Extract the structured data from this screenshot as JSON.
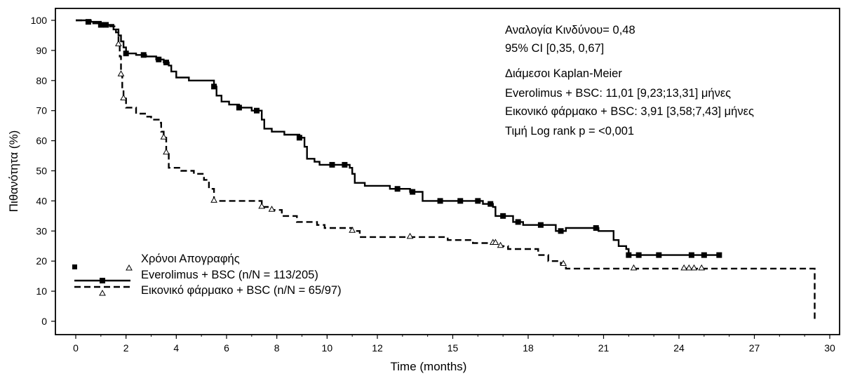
{
  "chart_data": {
    "type": "line",
    "subtype": "kaplan-meier",
    "title": "",
    "xlabel": "Time (months)",
    "ylabel": "Πιθανότητα (%)",
    "xlim": [
      0,
      30
    ],
    "ylim": [
      0,
      100
    ],
    "x_ticks": [
      "0",
      "2",
      "4",
      "6",
      "8",
      "10",
      "12",
      "15",
      "18",
      "21",
      "24",
      "27",
      "30"
    ],
    "y_ticks": [
      "0",
      "10",
      "20",
      "30",
      "40",
      "50",
      "60",
      "70",
      "80",
      "90",
      "100"
    ],
    "grid": false,
    "annotations": [
      "Αναλογία Κινδύνου= 0,48",
      "95% CI [0,35, 0,67]",
      "Διάμεσοι Kaplan-Meier",
      "Everolimus + BSC: 11,01 [9,23;13,31] μήνες",
      "Εικονικό φάρμακο + BSC: 3,91 [3,58;7,43] μήνες",
      "Τιμή Log rank p = <0,001"
    ],
    "legend": {
      "placement": "bottom-left",
      "title": "Χρόνοι Απογραφής",
      "entries": [
        "Everolimus + BSC (n/N = 113/205)",
        "Εικονικό φάρμακο + BSC (n/N = 65/97)"
      ]
    },
    "series": [
      {
        "name": "Everolimus + BSC (n/N = 113/205)",
        "style": "solid",
        "censor_marker": "filled-square",
        "steps": [
          [
            0,
            100
          ],
          [
            0.5,
            99.5
          ],
          [
            1.0,
            98.5
          ],
          [
            1.5,
            97
          ],
          [
            1.7,
            95
          ],
          [
            1.8,
            93
          ],
          [
            1.9,
            91
          ],
          [
            2.0,
            89
          ],
          [
            2.4,
            88.5
          ],
          [
            2.8,
            88
          ],
          [
            3.2,
            87
          ],
          [
            3.5,
            86
          ],
          [
            3.7,
            85
          ],
          [
            3.8,
            83
          ],
          [
            4.0,
            81
          ],
          [
            4.5,
            80
          ],
          [
            5.5,
            78
          ],
          [
            5.6,
            75
          ],
          [
            5.8,
            73
          ],
          [
            6.1,
            72
          ],
          [
            6.5,
            71
          ],
          [
            7.0,
            70
          ],
          [
            7.4,
            67
          ],
          [
            7.5,
            64
          ],
          [
            7.8,
            63
          ],
          [
            8.3,
            62
          ],
          [
            8.9,
            61
          ],
          [
            9.1,
            58
          ],
          [
            9.2,
            54
          ],
          [
            9.5,
            53
          ],
          [
            9.7,
            52
          ],
          [
            10.5,
            52
          ],
          [
            10.9,
            51
          ],
          [
            11.0,
            49
          ],
          [
            11.1,
            46
          ],
          [
            11.5,
            45
          ],
          [
            12.5,
            44
          ],
          [
            13.3,
            43
          ],
          [
            13.8,
            40
          ],
          [
            15.0,
            40
          ],
          [
            16.2,
            39
          ],
          [
            16.6,
            38
          ],
          [
            16.7,
            35
          ],
          [
            17.3,
            35
          ],
          [
            17.4,
            33
          ],
          [
            17.8,
            32
          ],
          [
            18.7,
            32
          ],
          [
            19.1,
            30
          ],
          [
            19.5,
            31
          ],
          [
            20.5,
            31
          ],
          [
            20.8,
            30
          ],
          [
            21.4,
            27
          ],
          [
            21.6,
            25
          ],
          [
            21.9,
            24
          ],
          [
            22.0,
            22
          ],
          [
            25.6,
            22
          ]
        ],
        "censored": [
          0.5,
          1.0,
          1.2,
          2.0,
          2.7,
          3.3,
          3.6,
          5.5,
          6.5,
          7.2,
          8.9,
          10.2,
          10.7,
          12.8,
          13.4,
          14.5,
          15.3,
          16.0,
          16.5,
          17.0,
          17.6,
          18.5,
          19.3,
          20.7,
          22.0,
          22.4,
          23.2,
          24.5,
          25.0,
          25.6
        ],
        "end_x": 25.6
      },
      {
        "name": "Εικονικό φάρμακο + BSC (n/N = 65/97)",
        "style": "dashed",
        "censor_marker": "open-triangle",
        "steps": [
          [
            0,
            100
          ],
          [
            0.6,
            99
          ],
          [
            1.2,
            98
          ],
          [
            1.6,
            96
          ],
          [
            1.7,
            92
          ],
          [
            1.75,
            88
          ],
          [
            1.8,
            82
          ],
          [
            1.85,
            77
          ],
          [
            1.9,
            74
          ],
          [
            2.0,
            71
          ],
          [
            2.4,
            69
          ],
          [
            2.8,
            68
          ],
          [
            3.0,
            67
          ],
          [
            3.3,
            66
          ],
          [
            3.4,
            63
          ],
          [
            3.5,
            61
          ],
          [
            3.6,
            56
          ],
          [
            3.7,
            51
          ],
          [
            4.2,
            50
          ],
          [
            4.7,
            49
          ],
          [
            5.1,
            47
          ],
          [
            5.3,
            44
          ],
          [
            5.5,
            40
          ],
          [
            7.4,
            38
          ],
          [
            7.8,
            37
          ],
          [
            8.2,
            35
          ],
          [
            8.8,
            33
          ],
          [
            9.6,
            32
          ],
          [
            9.9,
            31
          ],
          [
            11.0,
            30
          ],
          [
            11.3,
            28
          ],
          [
            13.2,
            28
          ],
          [
            14.8,
            27
          ],
          [
            15.8,
            26
          ],
          [
            16.9,
            25
          ],
          [
            17.2,
            24
          ],
          [
            18.4,
            22
          ],
          [
            18.8,
            20
          ],
          [
            19.3,
            19
          ],
          [
            19.5,
            17.5
          ],
          [
            29.4,
            17.5
          ],
          [
            29.4,
            0
          ]
        ],
        "censored": [
          1.7,
          1.8,
          1.9,
          3.5,
          3.6,
          5.5,
          7.4,
          7.8,
          11.0,
          13.3,
          16.6,
          16.7,
          16.9,
          19.4,
          22.2,
          24.2,
          24.4,
          24.6,
          24.9
        ],
        "end_x": 29.4
      }
    ]
  }
}
